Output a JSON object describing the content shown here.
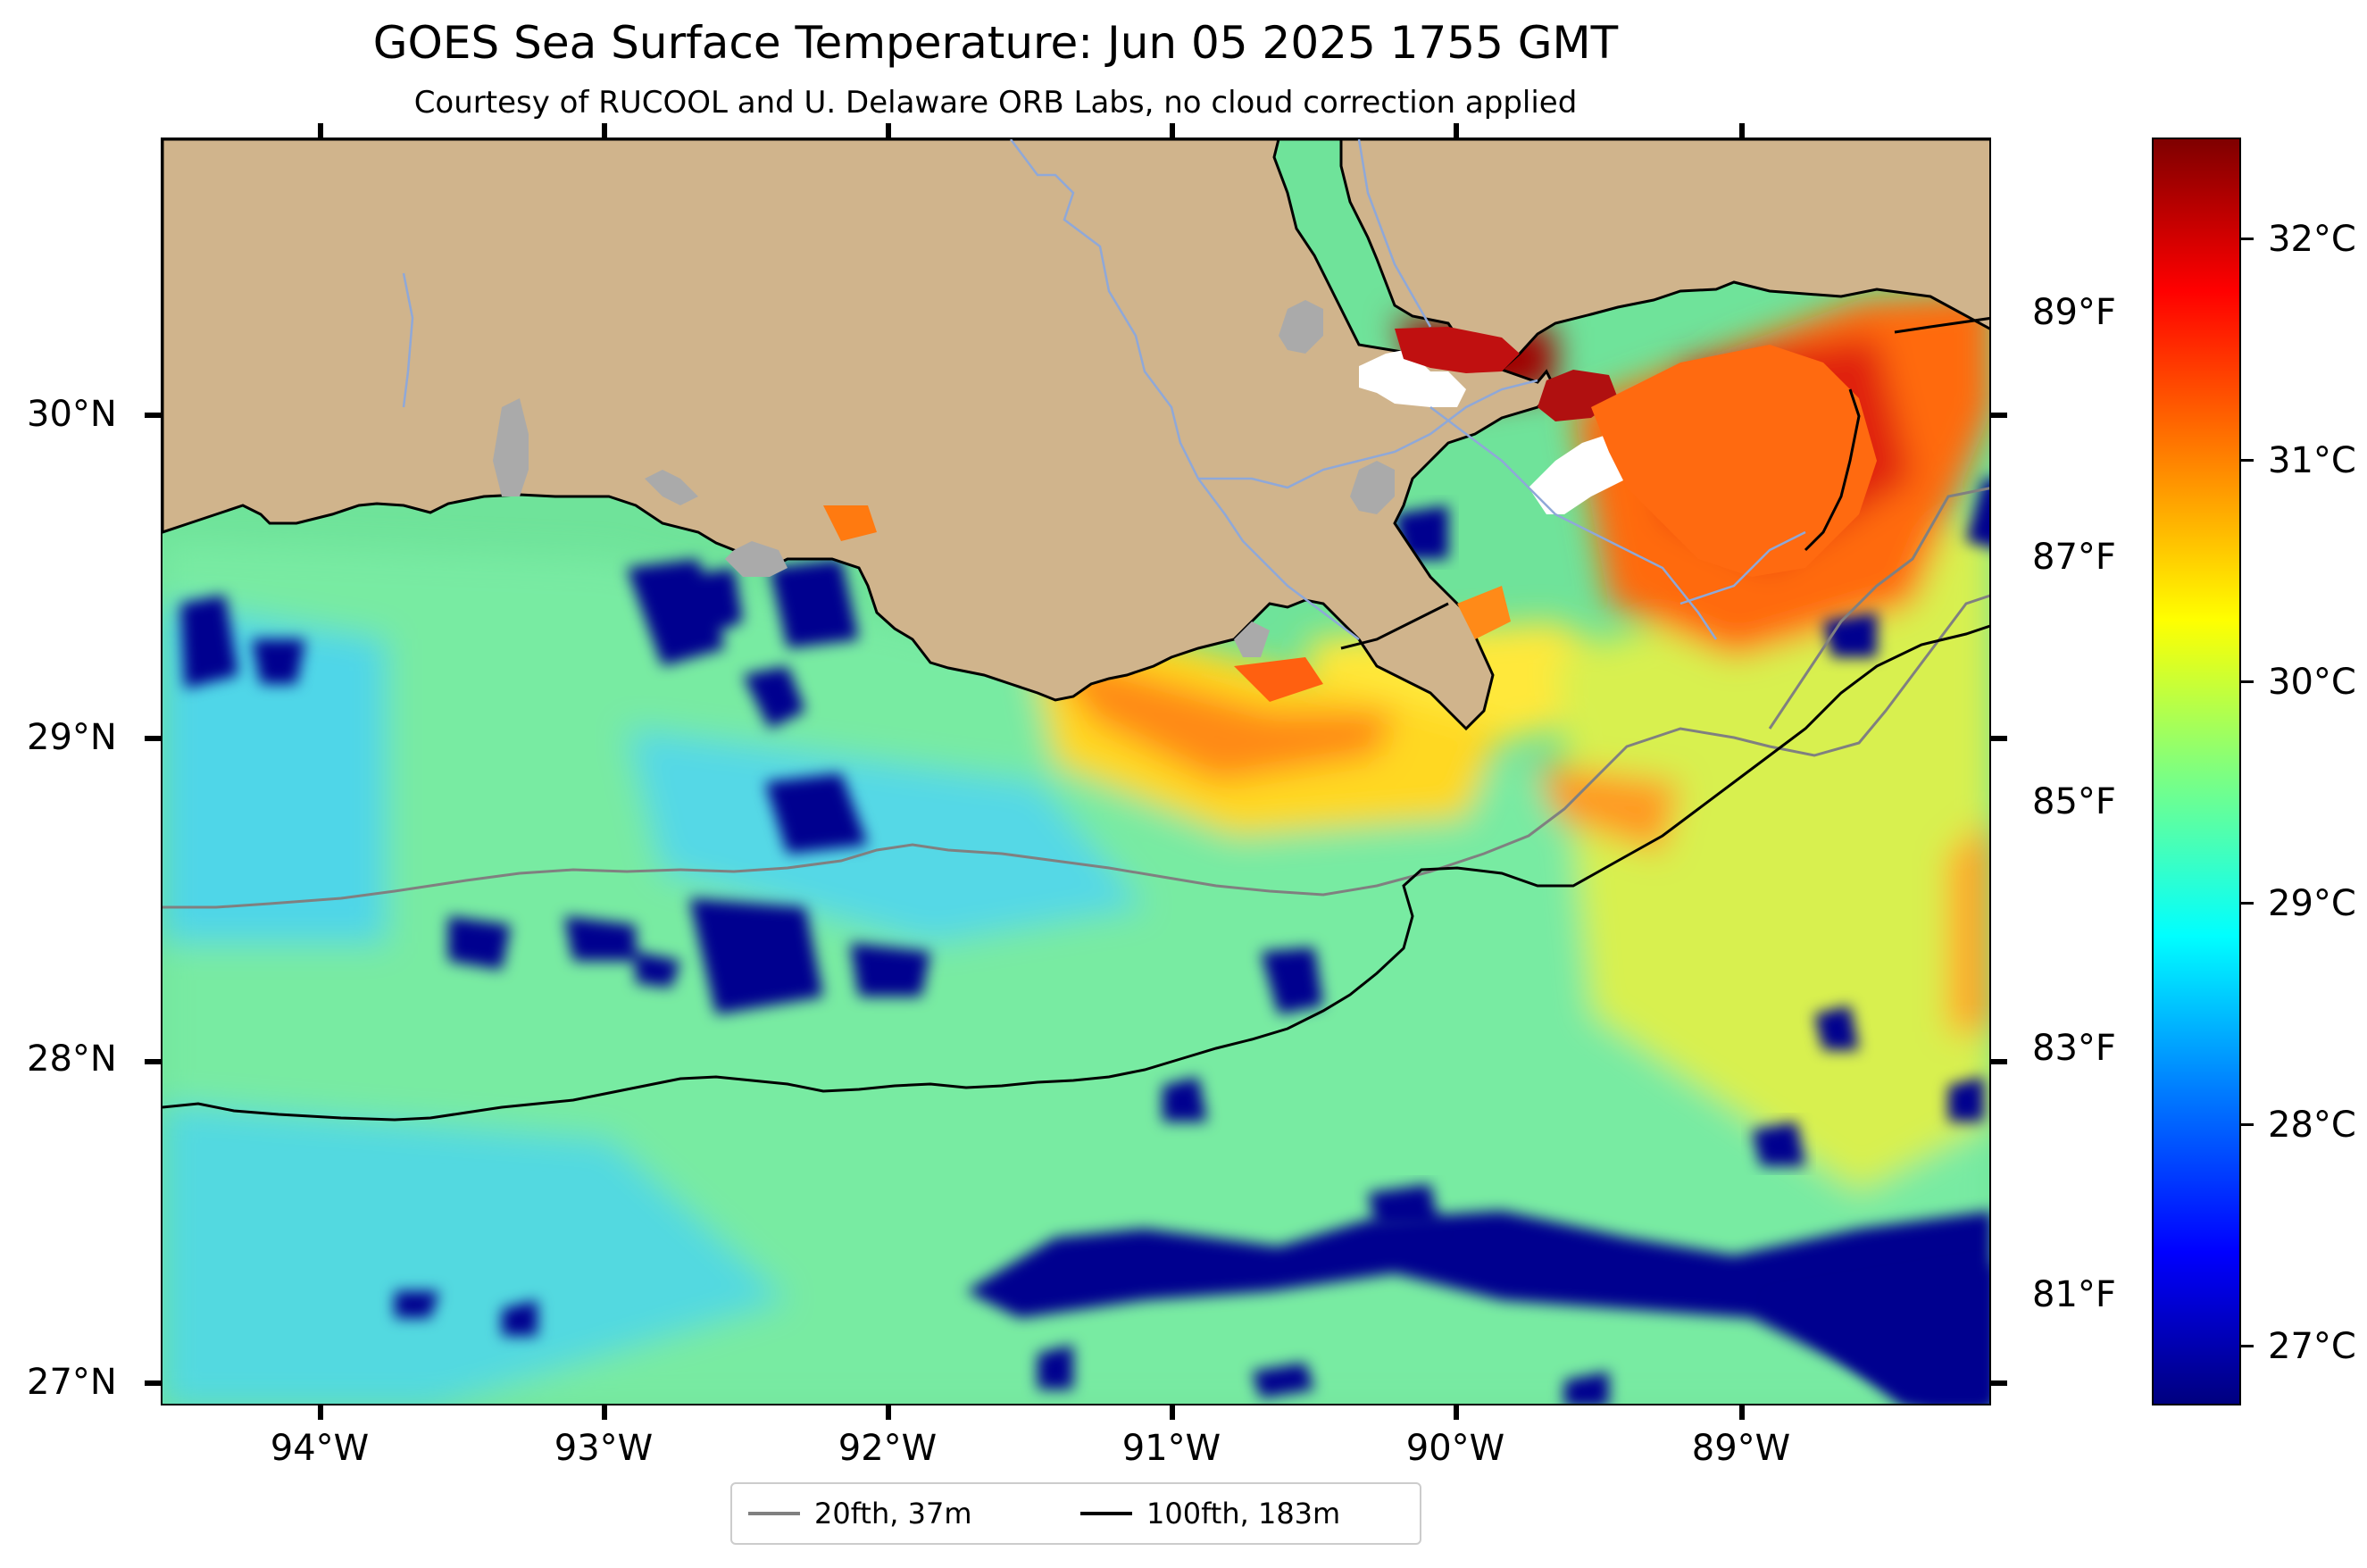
{
  "title": "GOES Sea Surface Temperature: Jun 05 2025 1755 GMT",
  "subtitle": "Courtesy of RUCOOL and U. Delaware ORB Labs, no cloud correction applied",
  "lat_labels": [
    "30°N",
    "29°N",
    "28°N",
    "27°N"
  ],
  "lon_labels": [
    "94°W",
    "93°W",
    "92°W",
    "91°W",
    "90°W",
    "89°W"
  ],
  "f_labels": [
    "89°F",
    "87°F",
    "85°F",
    "83°F",
    "81°F"
  ],
  "colorbar": {
    "labels": [
      "32°C",
      "31°C",
      "30°C",
      "29°C",
      "28°C",
      "27°C"
    ],
    "colormap": "jet",
    "colors": [
      "#00007f",
      "#0000ff",
      "#007fff",
      "#00ffff",
      "#7fff7f",
      "#ffff00",
      "#ff7f00",
      "#ff0000",
      "#7f0000"
    ]
  },
  "legend": [
    {
      "label": "20fth, 37m",
      "color": "#808080"
    },
    {
      "label": "100fth, 183m",
      "color": "#000000"
    }
  ],
  "colors": {
    "land": "#d0b48c",
    "lake": "#aaaaaa",
    "river": "#8fa8d8",
    "ocean_base": "#6fe39a",
    "cold": "#00008f",
    "warm": "#ff7a10",
    "hot": "#d21010"
  }
}
